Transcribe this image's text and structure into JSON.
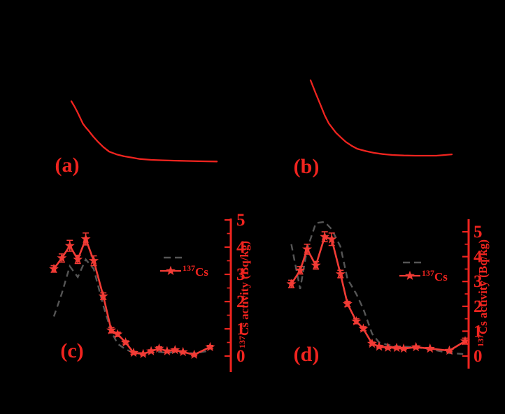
{
  "figure": {
    "background_color": "#000000"
  },
  "colors": {
    "red_primary": "#f0241f",
    "red_series": "#f23b35",
    "gray_dashed": "#555555",
    "background": "#000000"
  },
  "chart_data": [
    {
      "panel": "a",
      "type": "line",
      "label": "(a)",
      "axes_visible": false,
      "series": [
        {
          "name": "decay-curve",
          "color": "#f0241f",
          "samples": [
            [
              0.0,
              1.0
            ],
            [
              0.02,
              0.92
            ],
            [
              0.04,
              0.83
            ],
            [
              0.06,
              0.73
            ],
            [
              0.08,
              0.63
            ],
            [
              0.1,
              0.565
            ],
            [
              0.12,
              0.51
            ],
            [
              0.15,
              0.42
            ],
            [
              0.18,
              0.34
            ],
            [
              0.22,
              0.245
            ],
            [
              0.26,
              0.17
            ],
            [
              0.31,
              0.125
            ],
            [
              0.36,
              0.095
            ],
            [
              0.42,
              0.07
            ],
            [
              0.47,
              0.05
            ],
            [
              0.55,
              0.035
            ],
            [
              0.63,
              0.028
            ],
            [
              0.71,
              0.022
            ],
            [
              0.79,
              0.017
            ],
            [
              0.9,
              0.012
            ],
            [
              1.0,
              0.008
            ]
          ]
        }
      ]
    },
    {
      "panel": "b",
      "type": "line",
      "label": "(b)",
      "axes_visible": false,
      "series": [
        {
          "name": "decay-curve",
          "color": "#f0241f",
          "samples": [
            [
              0.0,
              1.0
            ],
            [
              0.035,
              0.835
            ],
            [
              0.07,
              0.68
            ],
            [
              0.1,
              0.54
            ],
            [
              0.13,
              0.43
            ],
            [
              0.18,
              0.31
            ],
            [
              0.22,
              0.24
            ],
            [
              0.25,
              0.19
            ],
            [
              0.29,
              0.14
            ],
            [
              0.33,
              0.1
            ],
            [
              0.39,
              0.07
            ],
            [
              0.45,
              0.046
            ],
            [
              0.51,
              0.03
            ],
            [
              0.58,
              0.018
            ],
            [
              0.66,
              0.012
            ],
            [
              0.74,
              0.009
            ],
            [
              0.82,
              0.009
            ],
            [
              0.89,
              0.009
            ],
            [
              0.95,
              0.018
            ],
            [
              1.0,
              0.027
            ]
          ]
        }
      ]
    },
    {
      "panel": "c",
      "type": "line",
      "label": "(c)",
      "y_axis_right": {
        "title_superscript": "137",
        "title_text": "Cs activity (Bq/kg)",
        "tick_labels": [
          "0",
          "1",
          "2",
          "3",
          "4",
          "5"
        ],
        "range": [
          -0.6,
          5.1
        ],
        "minor_ticks": true,
        "color": "#f0241f"
      },
      "legend": {
        "position": "middle-right",
        "entries": [
          {
            "label_superscript": "",
            "label_text": "",
            "style": "dashed-line",
            "color": "#555555"
          },
          {
            "label_superscript": "137",
            "label_text": "Cs",
            "style": "line-with-star-marker",
            "color": "#f23b35"
          }
        ]
      },
      "series": [
        {
          "name": "dashed-reference",
          "style": "dashed",
          "color": "#555555",
          "x_frac": [
            0.0,
            0.05,
            0.1,
            0.15,
            0.2,
            0.25,
            0.31,
            0.36,
            0.4,
            0.45,
            0.5,
            0.56,
            0.61,
            0.66,
            0.71,
            0.76,
            0.81,
            0.88,
            0.98
          ],
          "values": [
            1.45,
            2.3,
            3.3,
            2.9,
            3.55,
            3.2,
            1.85,
            0.9,
            0.45,
            0.25,
            0.12,
            0.1,
            0.12,
            0.15,
            0.12,
            0.14,
            0.12,
            0.1,
            0.2
          ]
        },
        {
          "name": "137Cs",
          "style": "solid-star",
          "color": "#f23b35",
          "x_frac": [
            0.0,
            0.05,
            0.1,
            0.15,
            0.2,
            0.25,
            0.31,
            0.36,
            0.4,
            0.45,
            0.5,
            0.56,
            0.61,
            0.66,
            0.71,
            0.76,
            0.81,
            0.88,
            0.98
          ],
          "values": [
            3.2,
            3.6,
            4.05,
            3.55,
            4.3,
            3.5,
            2.2,
            0.95,
            0.8,
            0.5,
            0.12,
            0.08,
            0.18,
            0.28,
            0.18,
            0.22,
            0.15,
            0.05,
            0.33
          ],
          "errors": [
            0.12,
            0.15,
            0.2,
            0.15,
            0.22,
            0.18,
            0.12,
            0.1,
            0.08,
            0.06,
            0.05,
            0.04,
            0.05,
            0.06,
            0.04,
            0.05,
            0.04,
            0.04,
            0.06
          ]
        }
      ]
    },
    {
      "panel": "d",
      "type": "line",
      "label": "(d)",
      "y_axis_right": {
        "title_superscript": "137",
        "title_text": "Cs activity (Bq/kg)",
        "tick_labels": [
          "0",
          "1",
          "2",
          "3",
          "4",
          "5"
        ],
        "range": [
          -0.5,
          5.5
        ],
        "minor_ticks": true,
        "color": "#f0241f"
      },
      "legend": {
        "position": "middle-right",
        "entries": [
          {
            "label_superscript": "",
            "label_text": "",
            "style": "dashed-line",
            "color": "#555555"
          },
          {
            "label_superscript": "137",
            "label_text": "Cs",
            "style": "line-with-star-marker",
            "color": "#f23b35"
          }
        ]
      },
      "series": [
        {
          "name": "dashed-reference",
          "style": "dashed",
          "color": "#555555",
          "x_frac": [
            0.01,
            0.06,
            0.1,
            0.15,
            0.2,
            0.24,
            0.29,
            0.33,
            0.38,
            0.42,
            0.47,
            0.51,
            0.56,
            0.61,
            0.65,
            0.72,
            0.8,
            0.91,
            1.0
          ],
          "values": [
            4.5,
            2.7,
            4.3,
            5.35,
            5.4,
            5.1,
            4.4,
            3.1,
            2.5,
            1.9,
            0.9,
            0.55,
            0.45,
            0.4,
            0.38,
            0.35,
            0.28,
            0.12,
            0.08
          ]
        },
        {
          "name": "137Cs",
          "style": "solid-star",
          "color": "#f23b35",
          "x_frac": [
            0.01,
            0.06,
            0.1,
            0.15,
            0.2,
            0.24,
            0.29,
            0.33,
            0.38,
            0.42,
            0.47,
            0.51,
            0.56,
            0.61,
            0.65,
            0.72,
            0.8,
            0.91,
            1.0
          ],
          "values": [
            2.9,
            3.45,
            4.3,
            3.65,
            4.8,
            4.7,
            3.3,
            2.1,
            1.4,
            1.1,
            0.5,
            0.38,
            0.34,
            0.33,
            0.3,
            0.36,
            0.3,
            0.22,
            0.6
          ],
          "errors": [
            0.15,
            0.15,
            0.2,
            0.15,
            0.2,
            0.25,
            0.15,
            0.1,
            0.1,
            0.08,
            0.06,
            0.05,
            0.04,
            0.04,
            0.04,
            0.05,
            0.04,
            0.04,
            0.12
          ]
        }
      ]
    }
  ]
}
